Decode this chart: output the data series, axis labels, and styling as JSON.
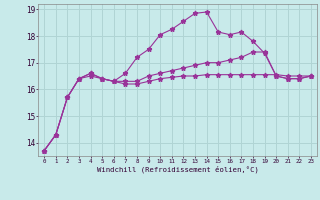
{
  "xlabel": "Windchill (Refroidissement éolien,°C)",
  "x_tick_labels": [
    "0",
    "1",
    "2",
    "3",
    "4",
    "5",
    "6",
    "7",
    "8",
    "9",
    "10",
    "11",
    "12",
    "13",
    "14",
    "15",
    "16",
    "17",
    "18",
    "19",
    "20",
    "21",
    "22",
    "23"
  ],
  "ylim": [
    13.5,
    19.2
  ],
  "yticks": [
    14,
    15,
    16,
    17,
    18,
    19
  ],
  "background_color": "#c8eaea",
  "grid_color": "#b0d4d4",
  "line_color": "#993399",
  "line1": [
    13.7,
    14.3,
    15.7,
    16.4,
    16.5,
    16.4,
    16.3,
    16.2,
    16.2,
    16.3,
    16.4,
    16.45,
    16.5,
    16.5,
    16.55,
    16.55,
    16.55,
    16.55,
    16.55,
    16.55,
    16.55,
    16.5,
    16.5,
    16.5
  ],
  "line2": [
    13.7,
    14.3,
    15.7,
    16.4,
    16.6,
    16.4,
    16.3,
    16.6,
    17.2,
    17.5,
    18.05,
    18.25,
    18.55,
    18.85,
    18.9,
    18.15,
    18.05,
    18.15,
    17.8,
    17.35,
    16.5,
    16.4,
    16.4,
    16.5
  ],
  "line3": [
    13.7,
    14.3,
    15.7,
    16.4,
    16.6,
    16.4,
    16.3,
    16.3,
    16.3,
    16.5,
    16.6,
    16.7,
    16.8,
    16.9,
    17.0,
    17.0,
    17.1,
    17.2,
    17.4,
    17.4,
    16.5,
    16.4,
    16.4,
    16.5
  ]
}
